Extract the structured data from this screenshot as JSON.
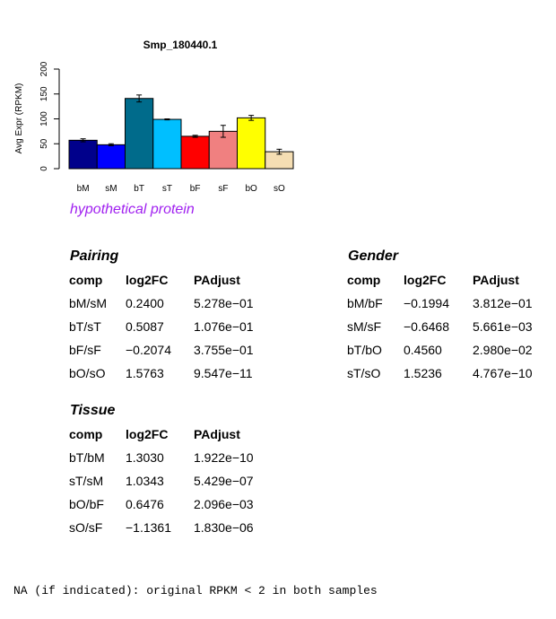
{
  "chart_data": {
    "type": "bar",
    "title": "Smp_180440.1",
    "ylabel": "Avg Expr (RPKM)",
    "xlabel": "",
    "ylim": [
      0,
      200
    ],
    "yticks": [
      "0",
      "50",
      "100",
      "150",
      "200"
    ],
    "categories": [
      "bM",
      "sM",
      "bT",
      "sT",
      "bF",
      "sF",
      "bO",
      "sO"
    ],
    "values": [
      57,
      48,
      141,
      99,
      65,
      75,
      102,
      34
    ],
    "errors": [
      3,
      2,
      7,
      1,
      2,
      12,
      5,
      5
    ],
    "colors": [
      "#00008b",
      "#0000ff",
      "#006b8b",
      "#00bfff",
      "#ff0000",
      "#f08080",
      "#ffff00",
      "#f5deb3"
    ]
  },
  "subtitle": "hypothetical protein",
  "subtitle_color": "#a020f0",
  "headers": {
    "comp": "comp",
    "fc": "log2FC",
    "padj": "PAdjust"
  },
  "pairing": {
    "title": "Pairing",
    "rows": [
      {
        "comp": "bM/sM",
        "fc": "0.2400",
        "padj": "5.278e−01"
      },
      {
        "comp": "bT/sT",
        "fc": "0.5087",
        "padj": "1.076e−01"
      },
      {
        "comp": "bF/sF",
        "fc": "−0.2074",
        "padj": "3.755e−01"
      },
      {
        "comp": "bO/sO",
        "fc": "1.5763",
        "padj": "9.547e−11"
      }
    ]
  },
  "gender": {
    "title": "Gender",
    "rows": [
      {
        "comp": "bM/bF",
        "fc": "−0.1994",
        "padj": "3.812e−01"
      },
      {
        "comp": "sM/sF",
        "fc": "−0.6468",
        "padj": "5.661e−03"
      },
      {
        "comp": "bT/bO",
        "fc": "0.4560",
        "padj": "2.980e−02"
      },
      {
        "comp": "sT/sO",
        "fc": "1.5236",
        "padj": "4.767e−10"
      }
    ]
  },
  "tissue": {
    "title": "Tissue",
    "rows": [
      {
        "comp": "bT/bM",
        "fc": "1.3030",
        "padj": "1.922e−10"
      },
      {
        "comp": "sT/sM",
        "fc": "1.0343",
        "padj": "5.429e−07"
      },
      {
        "comp": "bO/bF",
        "fc": "0.6476",
        "padj": "2.096e−03"
      },
      {
        "comp": "sO/sF",
        "fc": "−1.1361",
        "padj": "1.830e−06"
      }
    ]
  },
  "footnote": "NA (if indicated): original RPKM < 2 in both samples"
}
